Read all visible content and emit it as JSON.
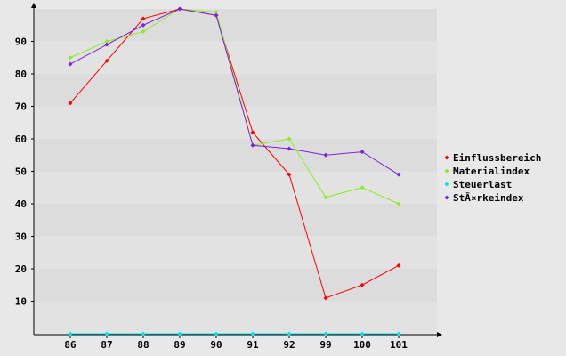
{
  "chart_data": {
    "type": "line",
    "title": "",
    "xlabel": "",
    "ylabel": "",
    "categories": [
      "86",
      "87",
      "88",
      "89",
      "90",
      "91",
      "92",
      "99",
      "100",
      "101"
    ],
    "ylim": [
      0,
      100
    ],
    "yticks": [
      "10",
      "20",
      "30",
      "40",
      "50",
      "60",
      "70",
      "80",
      "90"
    ],
    "grid": "horizontal alternating bands",
    "legend_position": "right",
    "series": [
      {
        "name": "Einflussbereich",
        "color": "#ff0000",
        "values": [
          71,
          84,
          97,
          100,
          98,
          62,
          49,
          11,
          15,
          21
        ]
      },
      {
        "name": "Materialindex",
        "color": "#88ee22",
        "values": [
          85,
          90,
          93,
          100,
          99,
          58,
          60,
          42,
          45,
          40
        ]
      },
      {
        "name": "Steuerlast",
        "color": "#00e5ee",
        "values": [
          0,
          0,
          0,
          0,
          0,
          0,
          0,
          0,
          0,
          0
        ]
      },
      {
        "name": "StÃ¤rkeindex",
        "color": "#7b22dd",
        "values": [
          83,
          89,
          95,
          100,
          98,
          58,
          57,
          55,
          56,
          49
        ]
      }
    ]
  }
}
